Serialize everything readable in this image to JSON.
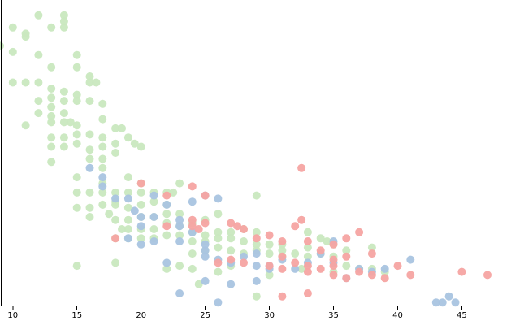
{
  "chart_data": {
    "type": "scatter",
    "title": "",
    "xlabel": "",
    "ylabel": "",
    "xlim": [
      9,
      47
    ],
    "ylim": [
      0,
      1
    ],
    "x_ticks": [
      "10",
      "15",
      "20",
      "25",
      "30",
      "35",
      "40",
      "45"
    ],
    "grid": false,
    "legend": "none",
    "series": [
      {
        "color": "#c9e8bf",
        "points": [
          [
            9,
            0.85
          ],
          [
            10,
            0.91
          ],
          [
            10,
            0.83
          ],
          [
            11,
            0.89
          ],
          [
            11,
            0.88
          ],
          [
            12,
            0.95
          ],
          [
            12,
            0.82
          ],
          [
            13,
            0.91
          ],
          [
            13,
            0.78
          ],
          [
            14,
            0.95
          ],
          [
            14,
            0.93
          ],
          [
            14,
            0.91
          ],
          [
            10,
            0.73
          ],
          [
            11,
            0.73
          ],
          [
            12,
            0.73
          ],
          [
            12,
            0.67
          ],
          [
            13,
            0.71
          ],
          [
            13,
            0.68
          ],
          [
            14,
            0.7
          ],
          [
            14,
            0.67
          ],
          [
            15,
            0.82
          ],
          [
            15,
            0.78
          ],
          [
            15,
            0.69
          ],
          [
            15,
            0.67
          ],
          [
            16,
            0.75
          ],
          [
            16,
            0.73
          ],
          [
            16.5,
            0.73
          ],
          [
            11,
            0.59
          ],
          [
            12,
            0.63
          ],
          [
            13,
            0.65
          ],
          [
            13,
            0.62
          ],
          [
            14,
            0.63
          ],
          [
            13,
            0.6
          ],
          [
            14,
            0.6
          ],
          [
            14.5,
            0.6
          ],
          [
            15,
            0.59
          ],
          [
            16,
            0.67
          ],
          [
            17,
            0.66
          ],
          [
            18,
            0.58
          ],
          [
            17,
            0.61
          ],
          [
            18.5,
            0.58
          ],
          [
            13,
            0.55
          ],
          [
            14,
            0.55
          ],
          [
            15,
            0.56
          ],
          [
            16,
            0.56
          ],
          [
            17,
            0.55
          ],
          [
            18,
            0.53
          ],
          [
            19,
            0.55
          ],
          [
            13,
            0.52
          ],
          [
            14,
            0.52
          ],
          [
            15,
            0.53
          ],
          [
            16,
            0.51
          ],
          [
            17,
            0.52
          ],
          [
            18,
            0.5
          ],
          [
            19.5,
            0.53
          ],
          [
            20,
            0.52
          ],
          [
            16,
            0.48
          ],
          [
            17,
            0.48
          ],
          [
            13,
            0.47
          ],
          [
            15,
            0.42
          ],
          [
            17,
            0.45
          ],
          [
            19,
            0.42
          ],
          [
            20,
            0.4
          ],
          [
            15,
            0.37
          ],
          [
            16,
            0.37
          ],
          [
            17,
            0.37
          ],
          [
            18,
            0.37
          ],
          [
            19,
            0.37
          ],
          [
            20,
            0.37
          ],
          [
            21,
            0.37
          ],
          [
            22,
            0.37
          ],
          [
            22.5,
            0.37
          ],
          [
            15,
            0.32
          ],
          [
            16,
            0.32
          ],
          [
            17,
            0.33
          ],
          [
            18,
            0.33
          ],
          [
            19,
            0.32
          ],
          [
            20,
            0.33
          ],
          [
            21,
            0.34
          ],
          [
            22,
            0.33
          ],
          [
            16,
            0.29
          ],
          [
            17.5,
            0.3
          ],
          [
            18,
            0.28
          ],
          [
            19,
            0.28
          ],
          [
            20,
            0.29
          ],
          [
            21,
            0.29
          ],
          [
            22,
            0.3
          ],
          [
            23,
            0.3
          ],
          [
            18.5,
            0.25
          ],
          [
            19,
            0.25
          ],
          [
            20,
            0.25
          ],
          [
            21,
            0.25
          ],
          [
            22,
            0.27
          ],
          [
            23,
            0.26
          ],
          [
            24,
            0.27
          ],
          [
            25,
            0.28
          ],
          [
            18,
            0.22
          ],
          [
            19,
            0.22
          ],
          [
            20,
            0.22
          ],
          [
            21,
            0.22
          ],
          [
            22,
            0.23
          ],
          [
            23,
            0.23
          ],
          [
            24,
            0.24
          ],
          [
            25,
            0.23
          ],
          [
            26,
            0.24
          ],
          [
            27,
            0.24
          ],
          [
            28,
            0.25
          ],
          [
            29,
            0.24
          ],
          [
            24,
            0.21
          ],
          [
            25,
            0.21
          ],
          [
            26,
            0.22
          ],
          [
            27,
            0.22
          ],
          [
            28,
            0.21
          ],
          [
            29,
            0.2
          ],
          [
            30,
            0.2
          ],
          [
            31,
            0.2
          ],
          [
            24,
            0.17
          ],
          [
            25,
            0.18
          ],
          [
            26,
            0.19
          ],
          [
            27,
            0.18
          ],
          [
            28,
            0.17
          ],
          [
            29,
            0.18
          ],
          [
            30,
            0.17
          ],
          [
            31,
            0.18
          ],
          [
            32,
            0.17
          ],
          [
            33,
            0.19
          ],
          [
            34,
            0.22
          ],
          [
            34.5,
            0.21
          ],
          [
            35,
            0.2
          ],
          [
            33,
            0.16
          ],
          [
            34,
            0.17
          ],
          [
            35,
            0.16
          ],
          [
            36,
            0.18
          ],
          [
            38,
            0.19
          ],
          [
            36,
            0.13
          ],
          [
            37,
            0.12
          ],
          [
            35,
            0.11
          ],
          [
            38,
            0.12
          ],
          [
            39,
            0.11
          ],
          [
            32.5,
            0.12
          ],
          [
            23,
            0.13
          ],
          [
            24,
            0.12
          ],
          [
            27,
            0.13
          ],
          [
            26,
            0.11
          ],
          [
            22,
            0.12
          ],
          [
            18,
            0.14
          ],
          [
            24.5,
            0.07
          ],
          [
            29,
            0.03
          ],
          [
            15,
            0.13
          ],
          [
            17,
            0.4
          ],
          [
            18,
            0.34
          ],
          [
            26,
            0.3
          ],
          [
            29,
            0.36
          ],
          [
            33,
            0.24
          ],
          [
            23,
            0.4
          ],
          [
            31,
            0.16
          ],
          [
            30,
            0.1
          ]
        ]
      },
      {
        "color": "#a9c4e0",
        "points": [
          [
            16,
            0.45
          ],
          [
            17,
            0.42
          ],
          [
            17,
            0.39
          ],
          [
            18,
            0.35
          ],
          [
            19,
            0.35
          ],
          [
            19.5,
            0.31
          ],
          [
            20,
            0.29
          ],
          [
            20,
            0.26
          ],
          [
            21,
            0.29
          ],
          [
            22,
            0.33
          ],
          [
            23,
            0.28
          ],
          [
            23,
            0.26
          ],
          [
            24,
            0.34
          ],
          [
            25,
            0.36
          ],
          [
            26,
            0.35
          ],
          [
            19,
            0.22
          ],
          [
            20,
            0.2
          ],
          [
            21,
            0.21
          ],
          [
            22,
            0.14
          ],
          [
            23,
            0.21
          ],
          [
            25,
            0.18
          ],
          [
            25,
            0.16
          ],
          [
            26,
            0.15
          ],
          [
            27,
            0.14
          ],
          [
            28,
            0.16
          ],
          [
            29,
            0.17
          ],
          [
            29,
            0.13
          ],
          [
            30,
            0.13
          ],
          [
            31,
            0.15
          ],
          [
            32,
            0.12
          ],
          [
            33,
            0.14
          ],
          [
            34,
            0.17
          ],
          [
            35,
            0.14
          ],
          [
            35,
            0.21
          ],
          [
            37,
            0.12
          ],
          [
            38,
            0.11
          ],
          [
            39,
            0.12
          ],
          [
            36,
            0.09
          ],
          [
            41,
            0.15
          ],
          [
            43,
            0.01
          ],
          [
            44,
            0.03
          ],
          [
            43.5,
            0.01
          ],
          [
            44.5,
            0.01
          ],
          [
            23,
            0.04
          ],
          [
            25,
            0.08
          ],
          [
            26,
            0.01
          ],
          [
            27,
            0.07
          ],
          [
            24,
            0.24
          ],
          [
            25,
            0.2
          ],
          [
            21,
            0.36
          ],
          [
            29,
            0.08
          ],
          [
            30,
            0.12
          ]
        ]
      },
      {
        "color": "#f5a4a2",
        "points": [
          [
            20,
            0.4
          ],
          [
            22,
            0.36
          ],
          [
            24,
            0.39
          ],
          [
            25,
            0.36
          ],
          [
            24,
            0.28
          ],
          [
            25,
            0.27
          ],
          [
            27,
            0.27
          ],
          [
            27.5,
            0.26
          ],
          [
            28,
            0.25
          ],
          [
            29,
            0.22
          ],
          [
            30,
            0.23
          ],
          [
            31,
            0.21
          ],
          [
            32,
            0.26
          ],
          [
            32.5,
            0.28
          ],
          [
            33,
            0.21
          ],
          [
            34,
            0.18
          ],
          [
            35,
            0.2
          ],
          [
            36,
            0.22
          ],
          [
            37,
            0.24
          ],
          [
            38,
            0.17
          ],
          [
            27,
            0.15
          ],
          [
            28,
            0.14
          ],
          [
            30,
            0.13
          ],
          [
            31,
            0.16
          ],
          [
            31,
            0.12
          ],
          [
            32,
            0.14
          ],
          [
            33,
            0.13
          ],
          [
            33,
            0.11
          ],
          [
            34,
            0.12
          ],
          [
            35,
            0.13
          ],
          [
            35,
            0.15
          ],
          [
            36,
            0.16
          ],
          [
            36,
            0.09
          ],
          [
            37,
            0.11
          ],
          [
            38,
            0.1
          ],
          [
            39,
            0.09
          ],
          [
            40,
            0.13
          ],
          [
            41,
            0.1
          ],
          [
            45,
            0.11
          ],
          [
            47,
            0.1
          ],
          [
            31,
            0.03
          ],
          [
            33,
            0.04
          ],
          [
            22,
            0.26
          ],
          [
            24,
            0.26
          ],
          [
            24.5,
            0.25
          ],
          [
            18,
            0.22
          ],
          [
            32.5,
            0.45
          ],
          [
            26,
            0.14
          ],
          [
            35,
            0.1
          ]
        ]
      }
    ]
  }
}
